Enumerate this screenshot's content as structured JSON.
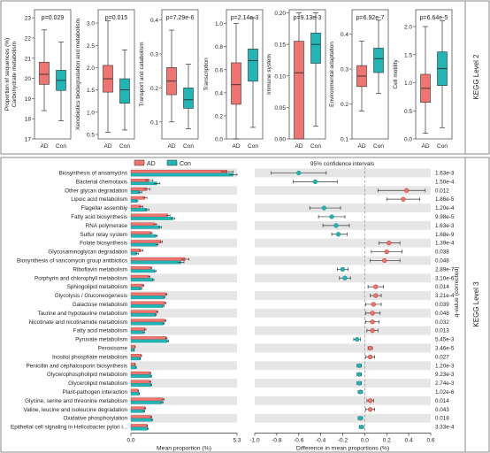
{
  "colors": {
    "ad": "#f07470",
    "con": "#22b5b5",
    "ad_dark": "#c0392b",
    "con_dark": "#138f8f",
    "stripe": "#e6e6e6",
    "frame": "#8a8a8a"
  },
  "legend": {
    "ad": "AD",
    "con": "Con"
  },
  "chart_data": [
    {
      "type": "boxplot",
      "section_label": "KEGG Level 2",
      "groups": [
        "AD",
        "Con"
      ],
      "panels": [
        {
          "ylabel": "Proportion of sequences (%)\nCarbohydrate metabolism",
          "pvalue": "p=0.029",
          "ylim": [
            17,
            23.4
          ],
          "ticks": [
            "17",
            "18",
            "19",
            "20",
            "21",
            "22",
            "23"
          ],
          "tickvals": [
            17,
            18,
            19,
            20,
            21,
            22,
            23
          ],
          "AD": {
            "min": 18.4,
            "q1": 19.7,
            "median": 20.2,
            "q3": 20.8,
            "max": 22.4
          },
          "Con": {
            "min": 17.9,
            "q1": 19.4,
            "median": 19.9,
            "q3": 20.4,
            "max": 21.8
          }
        },
        {
          "ylabel": "Xenobiotics biodegradation and metabolism",
          "pvalue": "p=0.015",
          "ylim": [
            0.4,
            3.3
          ],
          "ticks": [
            "0.5",
            "1.0",
            "1.5",
            "2.0",
            "2.5",
            "3.0"
          ],
          "tickvals": [
            0.5,
            1.0,
            1.5,
            2.0,
            2.5,
            3.0
          ],
          "AD": {
            "min": 0.55,
            "q1": 1.45,
            "median": 1.75,
            "q3": 2.05,
            "max": 3.05
          },
          "Con": {
            "min": 0.6,
            "q1": 1.2,
            "median": 1.5,
            "q3": 1.75,
            "max": 2.4
          }
        },
        {
          "ylabel": "Transport and catabolism",
          "pvalue": "p=7.29e-6",
          "ylim": [
            0.05,
            0.43
          ],
          "ticks": [
            "0.1",
            "0.2",
            "0.3",
            "0.4"
          ],
          "tickvals": [
            0.1,
            0.2,
            0.3,
            0.4
          ],
          "AD": {
            "min": 0.1,
            "q1": 0.18,
            "median": 0.22,
            "q3": 0.26,
            "max": 0.37
          },
          "Con": {
            "min": 0.08,
            "q1": 0.14,
            "median": 0.165,
            "q3": 0.2,
            "max": 0.27
          }
        },
        {
          "ylabel": "Transcription",
          "pvalue": "p=2.14e-3",
          "ylim": [
            0,
            1.12
          ],
          "ticks": [
            "0.0",
            "0.2",
            "0.4",
            "0.6",
            "0.8",
            "1.0"
          ],
          "tickvals": [
            0,
            0.2,
            0.4,
            0.6,
            0.8,
            1.0
          ],
          "AD": {
            "min": 0.0,
            "q1": 0.3,
            "median": 0.47,
            "q3": 0.66,
            "max": 1.0
          },
          "Con": {
            "min": 0.1,
            "q1": 0.5,
            "median": 0.68,
            "q3": 0.78,
            "max": 1.05
          }
        },
        {
          "ylabel": "Immune system",
          "pvalue": "p=9.13e-3",
          "ylim": [
            0,
            0.205
          ],
          "ticks": [
            "0.00",
            "0.05",
            "0.10",
            "0.15",
            "0.20"
          ],
          "tickvals": [
            0,
            0.05,
            0.1,
            0.15,
            0.2
          ],
          "AD": {
            "min": 0.0,
            "q1": 0.0,
            "median": 0.105,
            "q3": 0.155,
            "max": 0.2
          },
          "Con": {
            "min": 0.02,
            "q1": 0.12,
            "median": 0.15,
            "q3": 0.168,
            "max": 0.2
          }
        },
        {
          "ylabel": "Environmental adaptation",
          "pvalue": "p=6.92e-7",
          "ylim": [
            0.1,
            0.47
          ],
          "ticks": [
            "0.1",
            "0.2",
            "0.3",
            "0.4"
          ],
          "tickvals": [
            0.1,
            0.2,
            0.3,
            0.4
          ],
          "AD": {
            "min": 0.18,
            "q1": 0.25,
            "median": 0.28,
            "q3": 0.31,
            "max": 0.38
          },
          "Con": {
            "min": 0.23,
            "q1": 0.29,
            "median": 0.33,
            "q3": 0.36,
            "max": 0.44
          }
        },
        {
          "ylabel": "Cell motility",
          "pvalue": "p=6.64e-5",
          "ylim": [
            0,
            2.3
          ],
          "ticks": [
            "0.0",
            "0.5",
            "1.0",
            "1.5",
            "2.0"
          ],
          "tickvals": [
            0,
            0.5,
            1.0,
            1.5,
            2.0
          ],
          "AD": {
            "min": 0.1,
            "q1": 0.65,
            "median": 0.9,
            "q3": 1.15,
            "max": 2.0
          },
          "Con": {
            "min": 0.2,
            "q1": 0.95,
            "median": 1.25,
            "q3": 1.55,
            "max": 2.1
          }
        }
      ]
    },
    {
      "type": "extended_error_bar",
      "section_label": "KEGG Level 3",
      "bar_xlabel": "Mean proportion (%)",
      "bar_ticks": [
        "0.0",
        "5.3"
      ],
      "bar_xlim": [
        0,
        5.3
      ],
      "diff_xlabel": "Difference in mean proportions (%)",
      "diff_ticks": [
        "-1.0",
        "-0.8",
        "-0.6",
        "-0.4",
        "-0.2",
        "0.0",
        "0.2",
        "0.4",
        "0.6"
      ],
      "diff_tickvals": [
        -1.0,
        -0.8,
        -0.6,
        -0.4,
        -0.2,
        0.0,
        0.2,
        0.4,
        0.6
      ],
      "diff_xlim": [
        -1.0,
        0.6
      ],
      "ci_label": "95% confidence intervals",
      "qvalue_label": "q-value (corrected)",
      "rows": [
        {
          "name": "Biosynthesis of ansamycins",
          "ad": 4.8,
          "con": 5.1,
          "ad_err": 0.3,
          "con_err": 0.2,
          "diff": -0.6,
          "lo": -0.85,
          "hi": -0.35,
          "q": "1.63e-3"
        },
        {
          "name": "Bacterial chemotaxis",
          "ad": 0.9,
          "con": 1.3,
          "ad_err": 0.2,
          "con_err": 0.15,
          "diff": -0.45,
          "lo": -0.65,
          "hi": -0.25,
          "q": "1.50e-4"
        },
        {
          "name": "Other glycan degradation",
          "ad": 0.8,
          "con": 0.45,
          "ad_err": 0.15,
          "con_err": 0.1,
          "diff": 0.38,
          "lo": 0.12,
          "hi": 0.55,
          "q": "0.012"
        },
        {
          "name": "Lipoic acid metabolism",
          "ad": 0.7,
          "con": 0.3,
          "ad_err": 0.1,
          "con_err": 0.05,
          "diff": 0.35,
          "lo": 0.2,
          "hi": 0.5,
          "q": "1.86e-5"
        },
        {
          "name": "Flagellar assembly",
          "ad": 0.5,
          "con": 0.8,
          "ad_err": 0.1,
          "con_err": 0.1,
          "diff": -0.37,
          "lo": -0.5,
          "hi": -0.22,
          "q": "1.20e-4"
        },
        {
          "name": "Fatty acid biosynthesis",
          "ad": 1.85,
          "con": 2.1,
          "ad_err": 0.1,
          "con_err": 0.1,
          "diff": -0.3,
          "lo": -0.42,
          "hi": -0.18,
          "q": "9.98e-5"
        },
        {
          "name": "RNA polymerase",
          "ad": 1.2,
          "con": 1.45,
          "ad_err": 0.08,
          "con_err": 0.08,
          "diff": -0.26,
          "lo": -0.38,
          "hi": -0.14,
          "q": "1.63e-3"
        },
        {
          "name": "Sulfur relay system",
          "ad": 1.0,
          "con": 1.25,
          "ad_err": 0.06,
          "con_err": 0.06,
          "diff": -0.24,
          "lo": -0.3,
          "hi": -0.16,
          "q": "1.68e-9"
        },
        {
          "name": "Folate biosynthesis",
          "ad": 1.5,
          "con": 1.3,
          "ad_err": 0.07,
          "con_err": 0.06,
          "diff": 0.22,
          "lo": 0.13,
          "hi": 0.32,
          "q": "1.39e-4"
        },
        {
          "name": "Glycosaminoglycan degradation",
          "ad": 0.5,
          "con": 0.3,
          "ad_err": 0.1,
          "con_err": 0.07,
          "diff": 0.2,
          "lo": 0.06,
          "hi": 0.34,
          "q": "0.038"
        },
        {
          "name": "Biosynthesis of vancomycin group antibiotics",
          "ad": 2.7,
          "con": 2.5,
          "ad_err": 0.2,
          "con_err": 0.15,
          "diff": 0.18,
          "lo": 0.05,
          "hi": 0.32,
          "q": "0.048"
        },
        {
          "name": "Riboflavin metabolism",
          "ad": 1.0,
          "con": 1.2,
          "ad_err": 0.05,
          "con_err": 0.05,
          "diff": -0.2,
          "lo": -0.25,
          "hi": -0.15,
          "q": "2.89e-7"
        },
        {
          "name": "Porphyrin and chlorophyll metabolism",
          "ad": 0.9,
          "con": 1.1,
          "ad_err": 0.05,
          "con_err": 0.05,
          "diff": -0.18,
          "lo": -0.23,
          "hi": -0.13,
          "q": "3.10e-6"
        },
        {
          "name": "Sphingolipid metabolism",
          "ad": 0.6,
          "con": 0.5,
          "ad_err": 0.05,
          "con_err": 0.04,
          "diff": 0.1,
          "lo": 0.03,
          "hi": 0.17,
          "q": "0.014"
        },
        {
          "name": "Glycolysis / Gluconeogenesis",
          "ad": 1.75,
          "con": 1.65,
          "ad_err": 0.05,
          "con_err": 0.05,
          "diff": 0.1,
          "lo": 0.05,
          "hi": 0.15,
          "q": "3.21e-4"
        },
        {
          "name": "Galactose metabolism",
          "ad": 1.7,
          "con": 1.6,
          "ad_err": 0.05,
          "con_err": 0.05,
          "diff": 0.08,
          "lo": 0.01,
          "hi": 0.15,
          "q": "0.039"
        },
        {
          "name": "Taurine and hypotaurine metabolism",
          "ad": 1.3,
          "con": 1.22,
          "ad_err": 0.05,
          "con_err": 0.05,
          "diff": 0.07,
          "lo": 0.01,
          "hi": 0.14,
          "q": "0.048"
        },
        {
          "name": "Nicotinate and nicotinamide metabolism",
          "ad": 1.7,
          "con": 1.62,
          "ad_err": 0.05,
          "con_err": 0.05,
          "diff": 0.07,
          "lo": 0.01,
          "hi": 0.13,
          "q": "0.032"
        },
        {
          "name": "Fatty acid metabolism",
          "ad": 0.7,
          "con": 0.63,
          "ad_err": 0.05,
          "con_err": 0.05,
          "diff": 0.07,
          "lo": 0.02,
          "hi": 0.12,
          "q": "0.013"
        },
        {
          "name": "Pyruvate metabolism",
          "ad": 1.75,
          "con": 1.83,
          "ad_err": 0.05,
          "con_err": 0.05,
          "diff": -0.07,
          "lo": -0.1,
          "hi": -0.04,
          "q": "5.45e-3"
        },
        {
          "name": "Peroxisome",
          "ad": 0.2,
          "con": 0.15,
          "ad_err": 0.02,
          "con_err": 0.02,
          "diff": 0.05,
          "lo": 0.03,
          "hi": 0.07,
          "q": "3.46e-5"
        },
        {
          "name": "Inositol phosphate metabolism",
          "ad": 0.5,
          "con": 0.45,
          "ad_err": 0.03,
          "con_err": 0.03,
          "diff": 0.05,
          "lo": 0.01,
          "hi": 0.09,
          "q": "0.027"
        },
        {
          "name": "Penicillin and cephalosporin biosynthesis",
          "ad": 0.2,
          "con": 0.25,
          "ad_err": 0.02,
          "con_err": 0.02,
          "diff": -0.05,
          "lo": -0.07,
          "hi": -0.03,
          "q": "1.20e-3"
        },
        {
          "name": "Glycerophospholipid metabolism",
          "ad": 0.95,
          "con": 1.0,
          "ad_err": 0.04,
          "con_err": 0.04,
          "diff": -0.05,
          "lo": -0.07,
          "hi": -0.03,
          "q": "9.23e-3"
        },
        {
          "name": "Glycerolipid metabolism",
          "ad": 0.95,
          "con": 1.0,
          "ad_err": 0.04,
          "con_err": 0.04,
          "diff": -0.05,
          "lo": -0.07,
          "hi": -0.03,
          "q": "2.74e-3"
        },
        {
          "name": "Plant-pathogen interaction",
          "ad": 0.35,
          "con": 0.4,
          "ad_err": 0.03,
          "con_err": 0.03,
          "diff": -0.04,
          "lo": -0.06,
          "hi": -0.02,
          "q": "1.02e-6"
        },
        {
          "name": "Glycine, serine and threonine metabolism",
          "ad": 1.6,
          "con": 1.55,
          "ad_err": 0.05,
          "con_err": 0.05,
          "diff": 0.05,
          "lo": 0.02,
          "hi": 0.08,
          "q": "0.014"
        },
        {
          "name": "Valine, leucine and isoleucine degradation",
          "ad": 0.7,
          "con": 0.65,
          "ad_err": 0.04,
          "con_err": 0.04,
          "diff": 0.05,
          "lo": 0.01,
          "hi": 0.09,
          "q": "0.043"
        },
        {
          "name": "Oxidative phosphorylation",
          "ad": 1.0,
          "con": 1.04,
          "ad_err": 0.04,
          "con_err": 0.04,
          "diff": -0.04,
          "lo": -0.06,
          "hi": -0.02,
          "q": "0.018"
        },
        {
          "name": "Epithelial cell signaling in Helicobacter pylori i...",
          "ad": 0.8,
          "con": 0.83,
          "ad_err": 0.03,
          "con_err": 0.03,
          "diff": -0.03,
          "lo": -0.05,
          "hi": -0.01,
          "q": "3.33e-4"
        }
      ]
    }
  ]
}
